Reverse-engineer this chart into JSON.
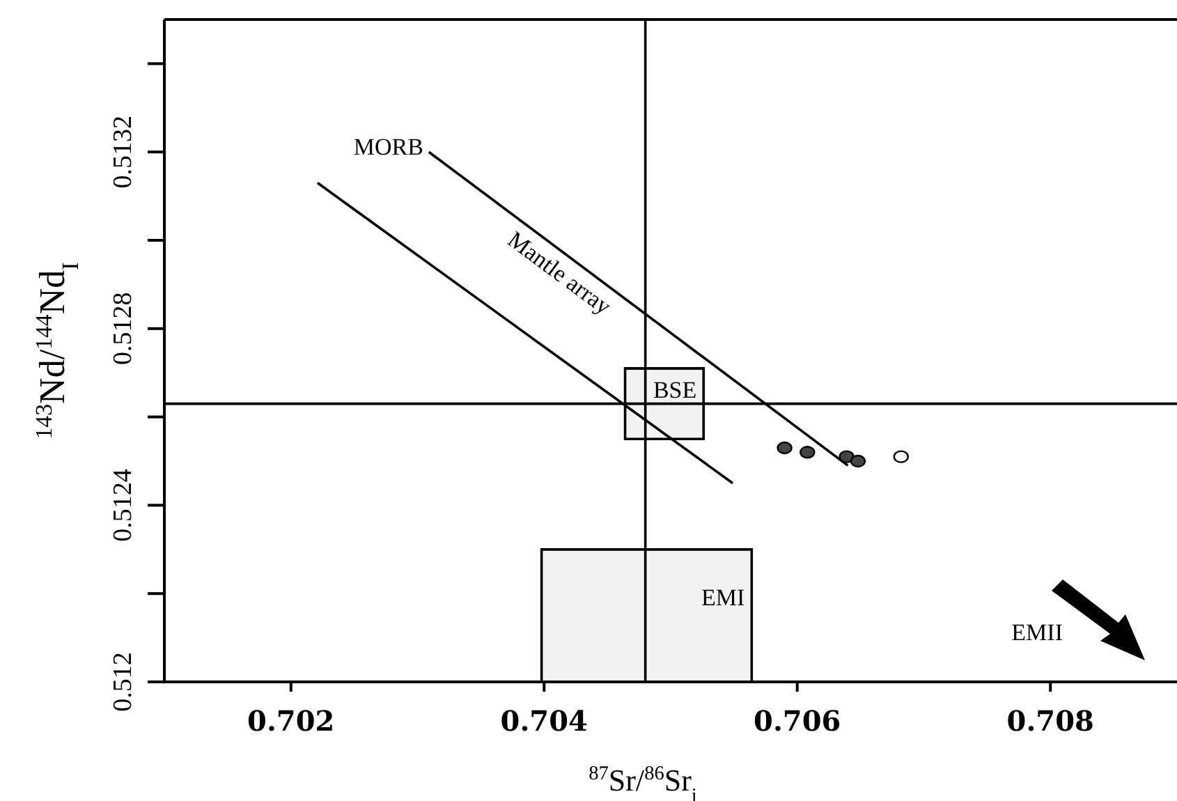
{
  "chart_data": {
    "type": "scatter",
    "xlabel": "$^{87}$Sr/$^{86}$Sr$_{i}$",
    "ylabel": "$^{143}$Nd/$^{144}$Nd$_{I}$",
    "xlim": [
      0.701,
      0.709
    ],
    "xticks": [
      0.702,
      0.704,
      0.706,
      0.708
    ],
    "ylim": [
      0.512,
      0.5135
    ],
    "yticks": [
      0.512,
      {
        "value": 0.5122,
        "label": null
      },
      0.5124,
      {
        "value": 0.5126,
        "label": null
      },
      0.5128,
      {
        "value": 0.513,
        "label": null
      },
      0.5132,
      {
        "value": 0.5134,
        "label": null
      }
    ],
    "grid": false,
    "legend": false,
    "marker": "circle",
    "series": [
      {
        "color": "#444444",
        "x": [
          0.7059,
          0.70608,
          0.70639,
          0.70648
        ],
        "values": [
          0.51253,
          0.51252,
          0.51251,
          0.5125
        ]
      },
      {
        "color": "#ffffff",
        "x": [
          0.70682
        ],
        "values": [
          0.51251
        ]
      },
      {
        "type": "line",
        "marker": "none",
        "color": "#000000",
        "x": [
          0.70221,
          0.70549
        ],
        "values": [
          0.51313,
          0.51245
        ]
      },
      {
        "type": "line",
        "marker": "none",
        "color": "#000000",
        "x": [
          0.70309,
          0.7064
        ],
        "values": [
          0.5132,
          0.51249
        ]
      },
      {
        "type": "line",
        "marker": "none",
        "name": "BSE",
        "color": "#000000",
        "x": [
          0.70464,
          0.70526
        ],
        "values": [
          0.51271,
          0.51271
        ],
        "lower": [
          0.51255,
          0.51255
        ],
        "upper": [
          0.51271,
          0.51271
        ]
      },
      {
        "type": "line",
        "marker": "none",
        "name": "EMI",
        "color": "#000000",
        "x": [
          0.70398,
          0.70564
        ],
        "values": [
          0.5123,
          0.5123
        ],
        "lower": [
          0.512,
          0.512
        ],
        "upper": [
          0.5123,
          0.5123
        ]
      }
    ],
    "ref_lines": [
      {
        "axis": "x",
        "value": 0.7048,
        "color": "#000000"
      },
      {
        "axis": "y",
        "value": 0.51263,
        "color": "#000000"
      }
    ],
    "annotations": [
      {
        "text": "MORB",
        "x": 0.70309,
        "y": 0.5132
      },
      {
        "text": "Mantle array",
        "x": 0.7042,
        "y": 0.51296
      },
      "EMII"
    ]
  }
}
